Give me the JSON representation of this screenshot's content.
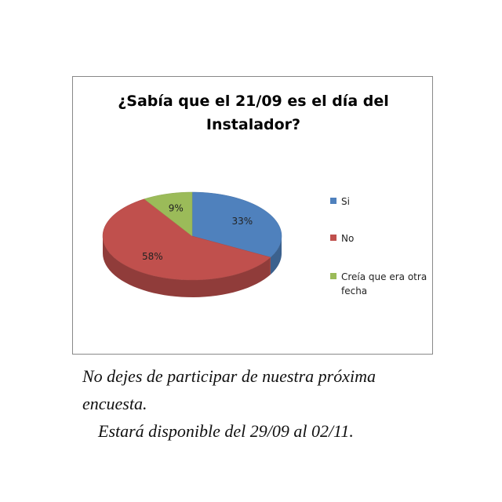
{
  "chart_data": {
    "type": "pie",
    "title": "¿Sabía que el 21/09 es el día del Instalador?",
    "categories": [
      "Si",
      "No",
      "Creía que era otra fecha"
    ],
    "values": [
      33,
      58,
      9
    ],
    "value_labels": [
      "33%",
      "58%",
      "9%"
    ],
    "colors": [
      "#4f81bd",
      "#c0504d",
      "#9bbb59"
    ]
  },
  "caption": [
    "No dejes de participar de nuestra próxima encuesta.",
    "Estará disponible del 29/09 al 02/11."
  ]
}
